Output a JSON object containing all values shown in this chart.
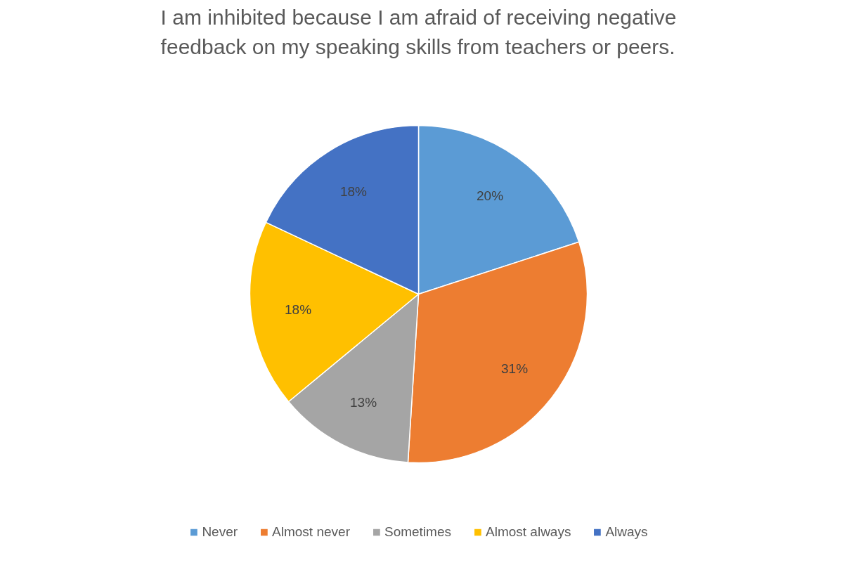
{
  "chart_data": {
    "type": "pie",
    "title": "I am inhibited because I am afraid of receiving negative\nfeedback on my speaking skills from teachers or peers.",
    "categories": [
      "Never",
      "Almost never",
      "Sometimes",
      "Almost always",
      "Always"
    ],
    "values": [
      20,
      31,
      13,
      18,
      18
    ],
    "colors": [
      "#5b9bd5",
      "#ed7d31",
      "#a5a5a5",
      "#ffc000",
      "#4472c4"
    ],
    "value_labels": [
      "20%",
      "31%",
      "13%",
      "18%",
      "18%"
    ],
    "legend": "bottom"
  }
}
